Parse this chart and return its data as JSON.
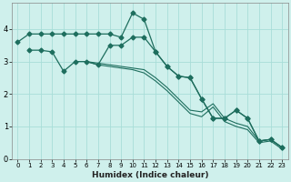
{
  "xlabel": "Humidex (Indice chaleur)",
  "bg_color": "#cff0ec",
  "grid_color": "#a8ddd8",
  "line_color": "#1e6e5e",
  "xlim": [
    -0.5,
    23.5
  ],
  "ylim": [
    0,
    4.8
  ],
  "yticks": [
    0,
    1,
    2,
    3,
    4
  ],
  "xtick_labels": [
    "0",
    "1",
    "2",
    "3",
    "4",
    "5",
    "6",
    "7",
    "8",
    "9",
    "10",
    "11",
    "12",
    "13",
    "14",
    "15",
    "16",
    "17",
    "18",
    "19",
    "20",
    "21",
    "22",
    "23"
  ],
  "series": [
    {
      "x": [
        0,
        1,
        2,
        3,
        4,
        5,
        6,
        7,
        8,
        9,
        10,
        11,
        12,
        13,
        14,
        15,
        16,
        17,
        18,
        19,
        20,
        21,
        22,
        23
      ],
      "y": [
        3.6,
        3.85,
        3.85,
        3.85,
        3.85,
        3.85,
        3.85,
        3.85,
        3.85,
        3.75,
        4.5,
        4.3,
        3.3,
        2.85,
        2.55,
        2.5,
        1.85,
        1.25,
        1.25,
        1.5,
        1.25,
        0.55,
        0.6,
        0.35
      ],
      "marker": true
    },
    {
      "x": [
        1,
        2,
        3,
        4,
        5,
        6,
        7,
        8,
        9,
        10,
        11,
        12,
        13,
        14,
        15,
        16,
        17,
        18,
        19,
        20,
        21,
        22,
        23
      ],
      "y": [
        3.35,
        3.35,
        3.3,
        2.7,
        3.0,
        3.0,
        2.9,
        3.5,
        3.5,
        3.75,
        3.75,
        3.3,
        2.85,
        2.55,
        2.5,
        1.85,
        1.25,
        1.25,
        1.5,
        1.25,
        0.55,
        0.6,
        0.35
      ],
      "marker": true
    },
    {
      "x": [
        6,
        7,
        8,
        9,
        10,
        11,
        12,
        13,
        14,
        15,
        16,
        17,
        18,
        19,
        20,
        21,
        22,
        23
      ],
      "y": [
        3.0,
        2.95,
        2.9,
        2.85,
        2.8,
        2.75,
        2.5,
        2.2,
        1.85,
        1.5,
        1.45,
        1.7,
        1.25,
        1.1,
        1.0,
        0.55,
        0.6,
        0.35
      ],
      "marker": false
    },
    {
      "x": [
        6,
        7,
        8,
        9,
        10,
        11,
        12,
        13,
        14,
        15,
        16,
        17,
        18,
        19,
        20,
        21,
        22,
        23
      ],
      "y": [
        3.0,
        2.9,
        2.85,
        2.8,
        2.75,
        2.65,
        2.4,
        2.1,
        1.75,
        1.4,
        1.3,
        1.6,
        1.15,
        1.0,
        0.9,
        0.5,
        0.55,
        0.3
      ],
      "marker": false
    }
  ]
}
